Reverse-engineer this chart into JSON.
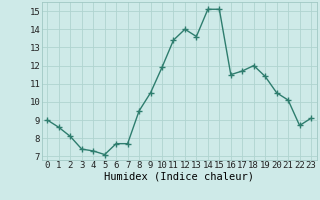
{
  "x": [
    0,
    1,
    2,
    3,
    4,
    5,
    6,
    7,
    8,
    9,
    10,
    11,
    12,
    13,
    14,
    15,
    16,
    17,
    18,
    19,
    20,
    21,
    22,
    23
  ],
  "y": [
    9.0,
    8.6,
    8.1,
    7.4,
    7.3,
    7.1,
    7.7,
    7.7,
    9.5,
    10.5,
    11.9,
    13.4,
    14.0,
    13.6,
    15.1,
    15.1,
    11.5,
    11.7,
    12.0,
    11.4,
    10.5,
    10.1,
    8.7,
    9.1
  ],
  "line_color": "#2e7d6e",
  "marker": "+",
  "marker_size": 4,
  "marker_lw": 1.0,
  "line_width": 1.0,
  "bg_color": "#ceeae8",
  "grid_color": "#b0d4d0",
  "xlabel": "Humidex (Indice chaleur)",
  "xlim": [
    -0.5,
    23.5
  ],
  "ylim": [
    6.8,
    15.5
  ],
  "yticks": [
    7,
    8,
    9,
    10,
    11,
    12,
    13,
    14,
    15
  ],
  "xticks": [
    0,
    1,
    2,
    3,
    4,
    5,
    6,
    7,
    8,
    9,
    10,
    11,
    12,
    13,
    14,
    15,
    16,
    17,
    18,
    19,
    20,
    21,
    22,
    23
  ],
  "xlabel_fontsize": 7.5,
  "tick_fontsize": 6.5,
  "spine_color": "#a0c8c4"
}
